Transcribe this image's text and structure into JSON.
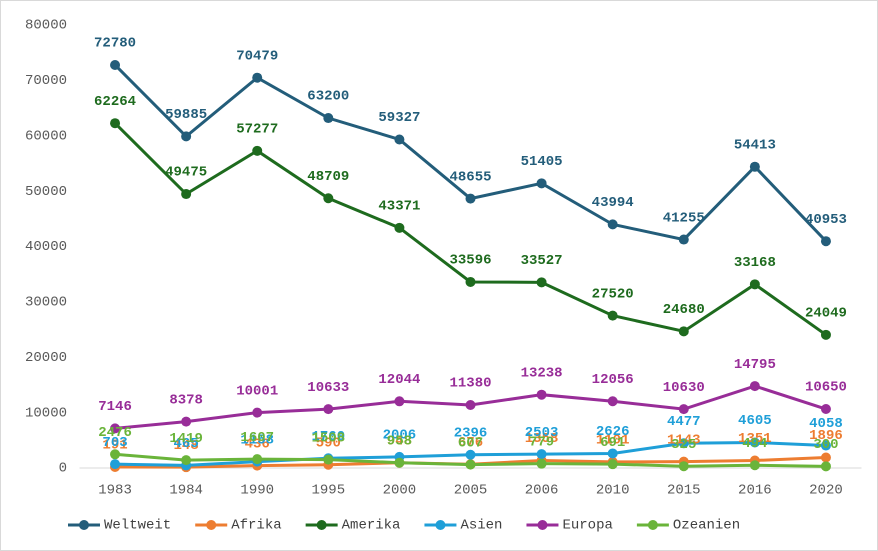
{
  "chart_data": {
    "type": "line",
    "categories": [
      "1983",
      "1984",
      "1990",
      "1995",
      "2000",
      "2005",
      "2006",
      "2010",
      "2015",
      "2016",
      "2020"
    ],
    "series": [
      {
        "name": "Weltweit",
        "color": "#235d7a",
        "values": [
          72780,
          59885,
          70479,
          63200,
          59327,
          48655,
          51405,
          43994,
          41255,
          54413,
          40953
        ]
      },
      {
        "name": "Afrika",
        "color": "#ed7d31",
        "values": [
          191,
          148,
          436,
          590,
          948,
          676,
          1358,
          1101,
          1143,
          1351,
          1896
        ]
      },
      {
        "name": "Amerika",
        "color": "#1e6b1e",
        "values": [
          62264,
          49475,
          57277,
          48709,
          43371,
          33596,
          33527,
          27520,
          24680,
          33168,
          24049
        ]
      },
      {
        "name": "Asien",
        "color": "#1f9fd8",
        "values": [
          703,
          465,
          1158,
          1760,
          2006,
          2396,
          2503,
          2626,
          4477,
          4605,
          4058
        ]
      },
      {
        "name": "Europa",
        "color": "#982d98",
        "values": [
          7146,
          8378,
          10001,
          10633,
          12044,
          11380,
          13238,
          12056,
          10630,
          14795,
          10650
        ]
      },
      {
        "name": "Ozeanien",
        "color": "#6ab43a",
        "values": [
          2476,
          1419,
          1607,
          1508,
          958,
          607,
          779,
          691,
          325,
          494,
          300
        ]
      }
    ],
    "ylim": [
      0,
      80000
    ],
    "yticks": [
      0,
      10000,
      20000,
      30000,
      40000,
      50000,
      60000,
      70000,
      80000
    ],
    "legend": "bottom"
  }
}
